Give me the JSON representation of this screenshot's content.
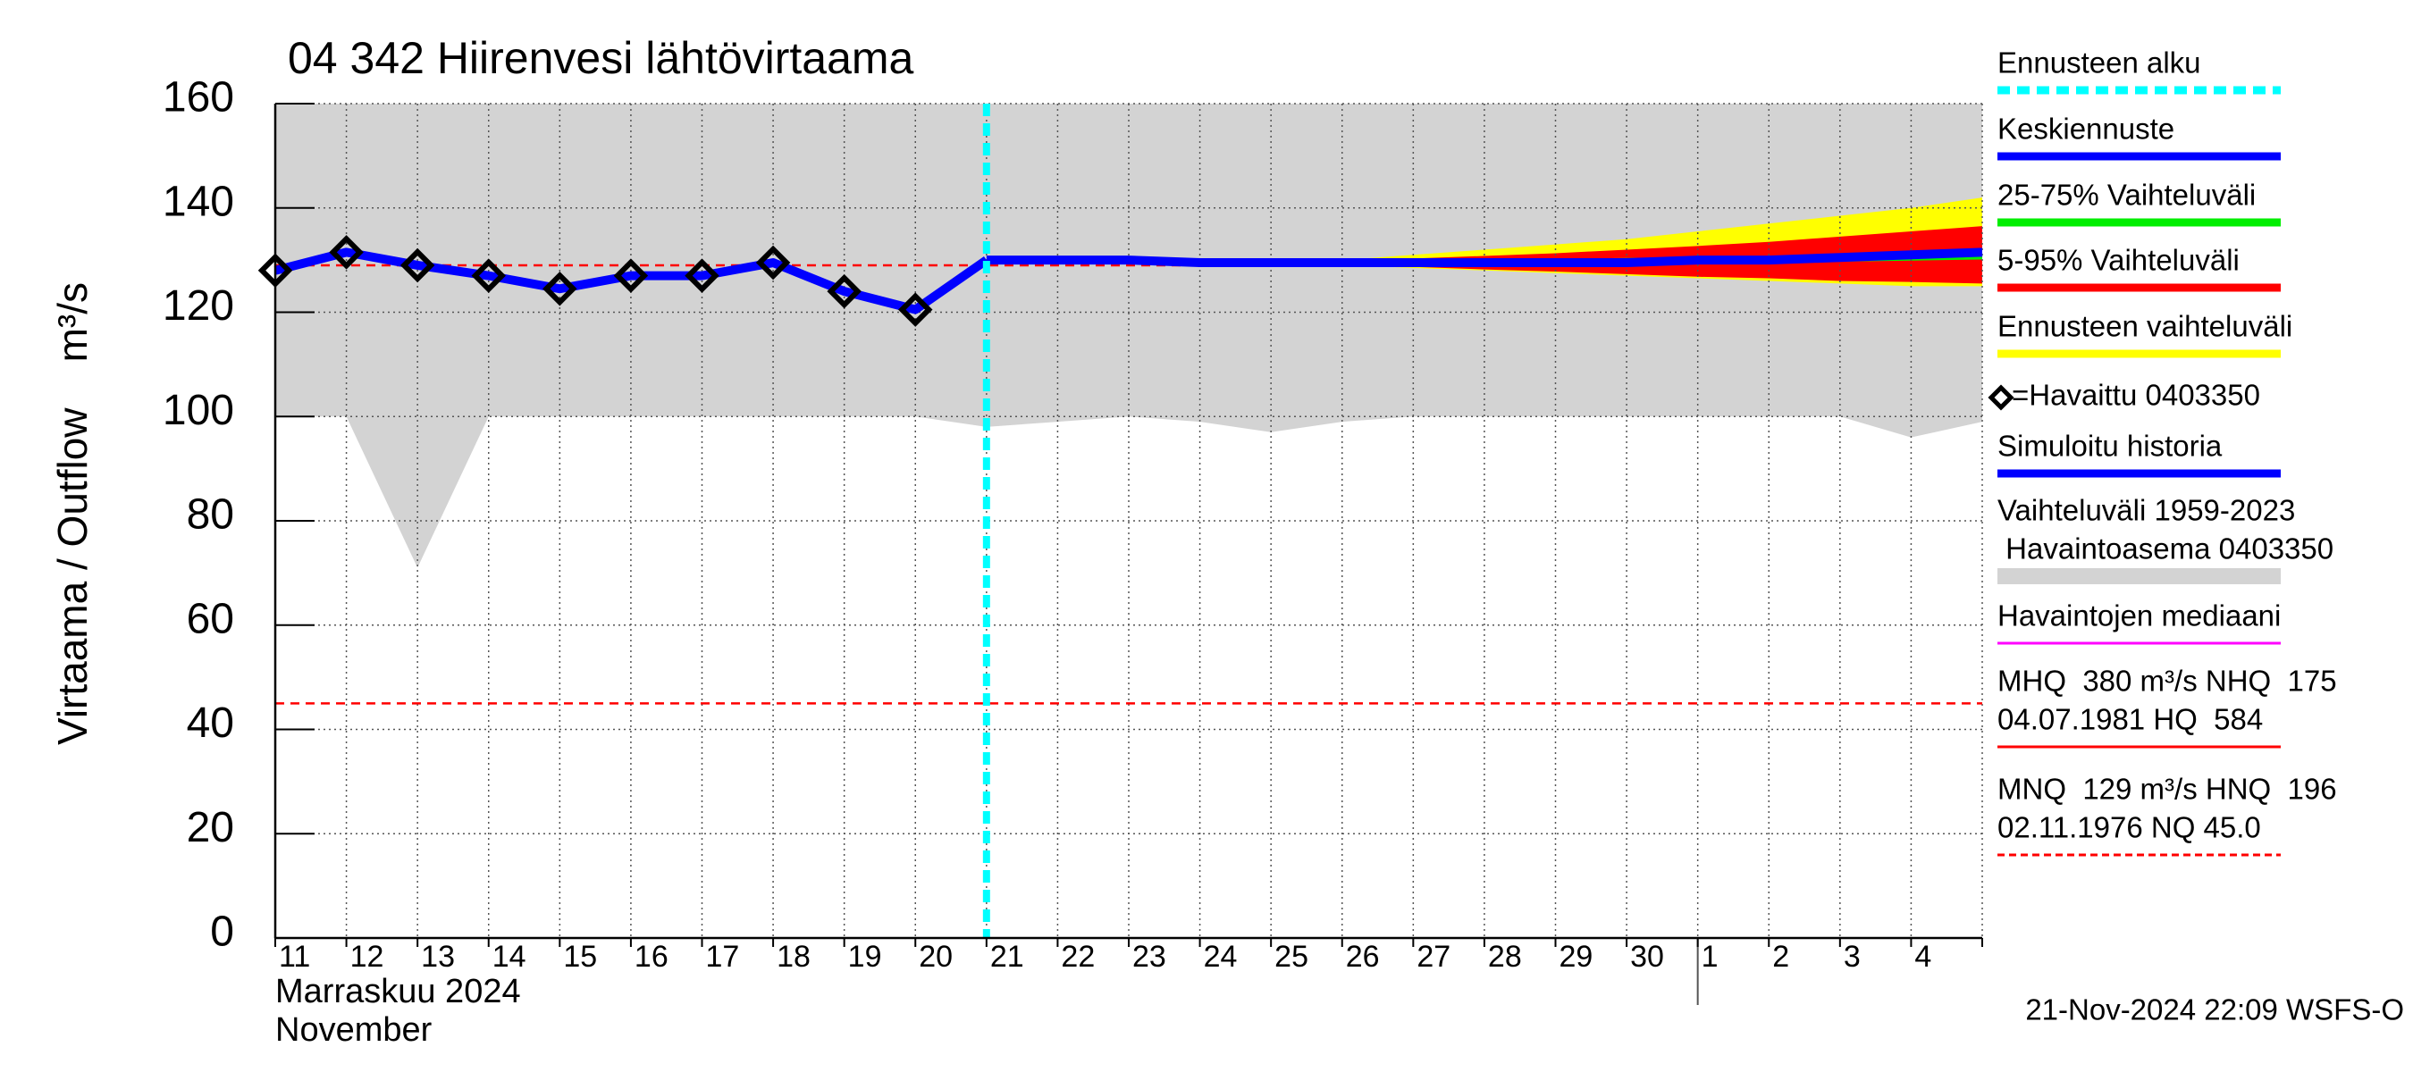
{
  "chart_data": {
    "type": "line",
    "title": "04 342 Hiirenvesi lähtövirtaama",
    "y_label": "Virtaama / Outflow    m³/s",
    "x_label_lines": [
      "Marraskuu 2024",
      "November"
    ],
    "timestamp": "21-Nov-2024 22:09 WSFS-O",
    "categories": [
      "11",
      "12",
      "13",
      "14",
      "15",
      "16",
      "17",
      "18",
      "19",
      "20",
      "21",
      "22",
      "23",
      "24",
      "25",
      "26",
      "27",
      "28",
      "29",
      "30",
      "1",
      "2",
      "3",
      "4",
      null
    ],
    "ylim": [
      0,
      160
    ],
    "yticks": [
      0,
      20,
      40,
      60,
      80,
      100,
      120,
      140,
      160
    ],
    "grid": true,
    "forecast_start": 10,
    "month_start": 20,
    "forecast_start_color": "#00ffff",
    "reference_lines": [
      {
        "value": 129,
        "color": "#ff0000"
      },
      {
        "value": 45,
        "color": "#ff0000"
      }
    ],
    "series": [
      {
        "kind": "band",
        "color": "#d3d3d3",
        "upper": [
          160,
          160,
          160,
          160,
          160,
          160,
          160,
          160,
          160,
          160,
          160,
          160,
          160,
          160,
          160,
          160,
          160,
          160,
          160,
          160,
          160,
          160,
          160,
          160,
          160
        ],
        "lower": [
          100,
          100,
          71,
          100,
          100,
          100,
          100,
          100,
          100,
          100,
          98,
          99,
          100,
          99,
          97,
          99,
          100,
          100,
          100,
          100,
          100,
          100,
          100,
          96,
          99
        ]
      },
      {
        "kind": "band",
        "color": "#ffff00",
        "upper": [
          null,
          null,
          null,
          null,
          null,
          null,
          null,
          null,
          null,
          null,
          130,
          130,
          130,
          129.5,
          129.5,
          130,
          131,
          132,
          133,
          134,
          135.5,
          137,
          138.5,
          140,
          142
        ],
        "lower": [
          null,
          null,
          null,
          null,
          null,
          null,
          null,
          null,
          null,
          null,
          130,
          130,
          130,
          129.5,
          129.5,
          129,
          128.5,
          128,
          127.5,
          127,
          126.5,
          126,
          125.5,
          125,
          125
        ]
      },
      {
        "kind": "band",
        "color": "#ff0000",
        "upper": [
          null,
          null,
          null,
          null,
          null,
          null,
          null,
          null,
          null,
          null,
          130,
          130,
          130,
          129.5,
          129.5,
          129.8,
          130.3,
          130.8,
          131.3,
          132,
          132.7,
          133.5,
          134.5,
          135.5,
          136.5
        ],
        "lower": [
          null,
          null,
          null,
          null,
          null,
          null,
          null,
          null,
          null,
          null,
          130,
          130,
          130,
          129.5,
          129.5,
          129.2,
          128.7,
          128.2,
          127.8,
          127.3,
          126.8,
          126.5,
          126,
          125.8,
          125.5
        ]
      },
      {
        "kind": "band",
        "color": "#00ee00",
        "upper": [
          null,
          null,
          null,
          null,
          null,
          null,
          null,
          null,
          null,
          null,
          130,
          130,
          130,
          129.5,
          129.5,
          129.6,
          129.8,
          130,
          130.2,
          130.4,
          130.6,
          130.8,
          131,
          131.3,
          131.6
        ],
        "lower": [
          null,
          null,
          null,
          null,
          null,
          null,
          null,
          null,
          null,
          null,
          130,
          130,
          130,
          129.5,
          129.5,
          129.4,
          129.3,
          129.3,
          129.3,
          129.3,
          129.4,
          129.5,
          129.7,
          129.9,
          130.1
        ]
      },
      {
        "kind": "line",
        "color": "#0000ff",
        "values": [
          128,
          131.5,
          129,
          127,
          124.5,
          127,
          127,
          129.5,
          124,
          120.5,
          130,
          null,
          null,
          null,
          null,
          null,
          null,
          null,
          null,
          null,
          null,
          null,
          null,
          null,
          null
        ]
      },
      {
        "kind": "line",
        "color": "#0000ff",
        "values": [
          null,
          null,
          null,
          null,
          null,
          null,
          null,
          null,
          null,
          null,
          130,
          130,
          130,
          129.5,
          129.5,
          129.5,
          129.5,
          129.5,
          129.5,
          129.5,
          130,
          130,
          130.5,
          131,
          131.5
        ]
      },
      {
        "kind": "marker",
        "color": "#000000",
        "values": [
          128,
          131.5,
          129,
          127,
          124.5,
          127,
          127,
          129.5,
          124,
          120.5,
          null,
          null,
          null,
          null,
          null,
          null,
          null,
          null,
          null,
          null,
          null,
          null,
          null,
          null,
          null
        ]
      }
    ],
    "legend": [
      {
        "lines": [
          "Ennusteen alku"
        ],
        "color": "#00ffff",
        "style": "dashed",
        "weight": "heavy"
      },
      {
        "lines": [
          "Keskiennuste"
        ],
        "color": "#0000ff",
        "style": "solid",
        "weight": "heavy"
      },
      {
        "lines": [
          "25-75% Vaihteluväli"
        ],
        "color": "#00ee00",
        "style": "solid",
        "weight": "heavy"
      },
      {
        "lines": [
          "5-95% Vaihteluväli"
        ],
        "color": "#ff0000",
        "style": "solid",
        "weight": "heavy"
      },
      {
        "lines": [
          "Ennusteen vaihteluväli"
        ],
        "color": "#ffff00",
        "style": "solid",
        "weight": "heavy"
      },
      {
        "lines": [
          "=Havaittu 0403350"
        ],
        "color": "#000000",
        "style": "marker",
        "weight": "heavy"
      },
      {
        "lines": [
          "Simuloitu historia"
        ],
        "color": "#0000ff",
        "style": "solid",
        "weight": "heavy"
      },
      {
        "lines": [
          "Vaihteluväli 1959-2023",
          " Havaintoasema 0403350"
        ],
        "color": "#d3d3d3",
        "style": "solid",
        "weight": "wide"
      },
      {
        "lines": [
          "Havaintojen mediaani"
        ],
        "color": "#ff00ff",
        "style": "solid",
        "weight": "light"
      },
      {
        "lines": [
          "MHQ  380 m³/s NHQ  175",
          "04.07.1981 HQ  584"
        ],
        "color": "#ff0000",
        "style": "solid",
        "weight": "light"
      },
      {
        "lines": [
          "MNQ  129 m³/s HNQ  196",
          "02.11.1976 NQ 45.0"
        ],
        "color": "#ff0000",
        "style": "dashed",
        "weight": "light"
      }
    ]
  }
}
